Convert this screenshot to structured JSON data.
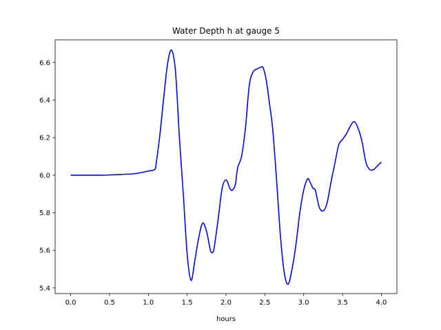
{
  "chart_data": {
    "type": "line",
    "title": "Water Depth h at gauge 5",
    "xlabel": "hours",
    "ylabel": "",
    "xlim": [
      -0.2,
      4.2
    ],
    "ylim": [
      5.37,
      6.72
    ],
    "xticks": [
      0.0,
      0.5,
      1.0,
      1.5,
      2.0,
      2.5,
      3.0,
      3.5,
      4.0
    ],
    "xtick_labels": [
      "0.0",
      "0.5",
      "1.0",
      "1.5",
      "2.0",
      "2.5",
      "3.0",
      "3.5",
      "4.0"
    ],
    "yticks": [
      5.4,
      5.6,
      5.8,
      6.0,
      6.2,
      6.4,
      6.6
    ],
    "ytick_labels": [
      "5.4",
      "5.6",
      "5.8",
      "6.0",
      "6.2",
      "6.4",
      "6.6"
    ],
    "grid": false,
    "series": [
      {
        "color": "#0000ff",
        "x": [
          0.0,
          0.2,
          0.4,
          0.6,
          0.8,
          0.9,
          1.0,
          1.08,
          1.1,
          1.15,
          1.2,
          1.25,
          1.3,
          1.35,
          1.4,
          1.45,
          1.5,
          1.55,
          1.6,
          1.65,
          1.7,
          1.75,
          1.8,
          1.83,
          1.85,
          1.9,
          1.95,
          2.0,
          2.05,
          2.08,
          2.12,
          2.15,
          2.2,
          2.25,
          2.3,
          2.35,
          2.4,
          2.45,
          2.48,
          2.52,
          2.56,
          2.6,
          2.65,
          2.7,
          2.75,
          2.8,
          2.85,
          2.9,
          2.95,
          3.0,
          3.05,
          3.08,
          3.12,
          3.15,
          3.2,
          3.25,
          3.3,
          3.35,
          3.4,
          3.45,
          3.5,
          3.55,
          3.6,
          3.65,
          3.7,
          3.75,
          3.8,
          3.85,
          3.9,
          3.95,
          4.0
        ],
        "y": [
          6.0,
          6.0,
          6.0,
          6.003,
          6.007,
          6.013,
          6.022,
          6.03,
          6.06,
          6.22,
          6.42,
          6.6,
          6.665,
          6.55,
          6.2,
          5.9,
          5.58,
          5.44,
          5.55,
          5.67,
          5.745,
          5.7,
          5.6,
          5.59,
          5.62,
          5.77,
          5.93,
          5.975,
          5.93,
          5.92,
          5.95,
          6.04,
          6.1,
          6.25,
          6.48,
          6.55,
          6.565,
          6.575,
          6.57,
          6.5,
          6.38,
          6.25,
          5.98,
          5.68,
          5.48,
          5.42,
          5.5,
          5.63,
          5.8,
          5.92,
          5.98,
          5.965,
          5.93,
          5.92,
          5.83,
          5.81,
          5.85,
          5.96,
          6.06,
          6.16,
          6.19,
          6.22,
          6.26,
          6.285,
          6.25,
          6.18,
          6.07,
          6.03,
          6.03,
          6.05,
          6.07
        ]
      }
    ]
  }
}
